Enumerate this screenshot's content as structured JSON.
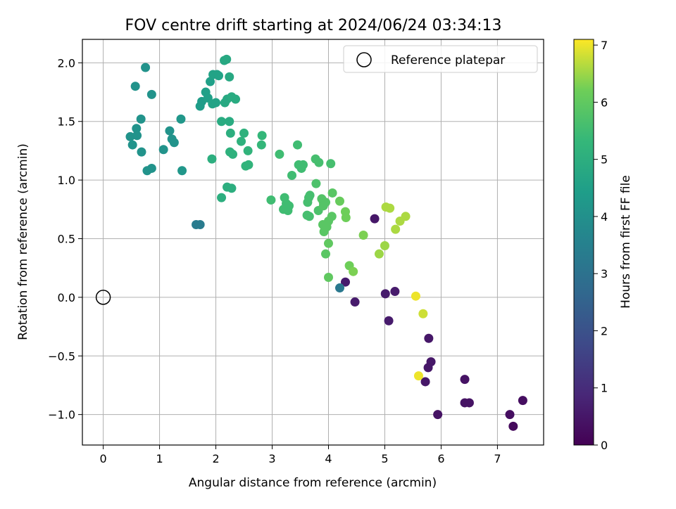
{
  "chart_data": {
    "type": "scatter",
    "title": "FOV centre drift starting at 2024/06/24 03:34:13",
    "xlabel": "Angular distance from reference (arcmin)",
    "ylabel": "Rotation from reference (arcmin)",
    "xlim": [
      -0.37,
      7.82
    ],
    "ylim": [
      -1.26,
      2.2
    ],
    "xticks": [
      0,
      1,
      2,
      3,
      4,
      5,
      6,
      7
    ],
    "yticks": [
      -1.0,
      -0.5,
      0.0,
      0.5,
      1.0,
      1.5,
      2.0
    ],
    "grid": true,
    "legend": {
      "position": "top-right",
      "entries": [
        "Reference platepar"
      ]
    },
    "reference_point": {
      "name": "Reference platepar",
      "x": 0,
      "y": 0
    },
    "colorbar": {
      "label": "Hours from first FF file",
      "colormap": "viridis",
      "range": [
        0,
        7.1
      ],
      "ticks": [
        0,
        1,
        2,
        3,
        4,
        5,
        6,
        7
      ]
    },
    "points": [
      [
        4.82,
        0.67,
        0.5
      ],
      [
        4.3,
        0.13,
        0.6
      ],
      [
        4.47,
        -0.04,
        0.6
      ],
      [
        5.01,
        0.03,
        0.6
      ],
      [
        5.18,
        0.05,
        0.6
      ],
      [
        5.07,
        -0.2,
        0.6
      ],
      [
        5.78,
        -0.35,
        0.5
      ],
      [
        5.82,
        -0.55,
        0.5
      ],
      [
        5.77,
        -0.6,
        0.5
      ],
      [
        5.72,
        -0.72,
        0.5
      ],
      [
        5.94,
        -1.0,
        0.4
      ],
      [
        6.42,
        -0.7,
        0.4
      ],
      [
        6.42,
        -0.9,
        0.4
      ],
      [
        6.5,
        -0.9,
        0.4
      ],
      [
        7.45,
        -0.88,
        0.3
      ],
      [
        7.22,
        -1.0,
        0.3
      ],
      [
        7.28,
        -1.1,
        0.2
      ],
      [
        4.2,
        0.08,
        3.2
      ],
      [
        1.65,
        0.62,
        3.3
      ],
      [
        1.72,
        0.62,
        3.3
      ],
      [
        0.75,
        1.96,
        4.1
      ],
      [
        0.57,
        1.8,
        4.1
      ],
      [
        0.86,
        1.73,
        4.1
      ],
      [
        0.67,
        1.52,
        4.1
      ],
      [
        0.48,
        1.37,
        4.1
      ],
      [
        0.59,
        1.44,
        4.1
      ],
      [
        0.6,
        1.38,
        4.1
      ],
      [
        0.52,
        1.3,
        4.1
      ],
      [
        0.68,
        1.24,
        4.1
      ],
      [
        0.78,
        1.08,
        4.1
      ],
      [
        0.86,
        1.1,
        4.1
      ],
      [
        1.07,
        1.26,
        4.1
      ],
      [
        1.18,
        1.42,
        4.1
      ],
      [
        1.22,
        1.35,
        4.1
      ],
      [
        1.26,
        1.32,
        4.1
      ],
      [
        1.38,
        1.52,
        4.2
      ],
      [
        1.4,
        1.08,
        4.2
      ],
      [
        1.72,
        1.63,
        4.4
      ],
      [
        1.75,
        1.67,
        4.4
      ],
      [
        1.82,
        1.75,
        4.5
      ],
      [
        1.86,
        1.7,
        4.5
      ],
      [
        1.9,
        1.84,
        4.5
      ],
      [
        1.95,
        1.9,
        4.6
      ],
      [
        2.02,
        1.9,
        4.6
      ],
      [
        2.05,
        1.89,
        4.6
      ],
      [
        1.94,
        1.65,
        4.6
      ],
      [
        2.0,
        1.66,
        4.6
      ],
      [
        2.15,
        2.02,
        4.8
      ],
      [
        2.19,
        2.03,
        4.8
      ],
      [
        2.2,
        1.69,
        4.8
      ],
      [
        2.16,
        1.66,
        4.8
      ],
      [
        2.24,
        1.88,
        4.8
      ],
      [
        2.28,
        1.71,
        4.9
      ],
      [
        2.35,
        1.69,
        4.9
      ],
      [
        2.1,
        1.5,
        4.9
      ],
      [
        2.24,
        1.5,
        4.9
      ],
      [
        2.26,
        1.4,
        5.0
      ],
      [
        1.93,
        1.18,
        5.0
      ],
      [
        2.2,
        0.94,
        5.0
      ],
      [
        2.28,
        0.93,
        5.0
      ],
      [
        2.1,
        0.85,
        5.0
      ],
      [
        2.25,
        1.24,
        5.1
      ],
      [
        2.3,
        1.22,
        5.1
      ],
      [
        2.45,
        1.33,
        5.1
      ],
      [
        2.5,
        1.4,
        5.1
      ],
      [
        2.53,
        1.12,
        5.2
      ],
      [
        2.58,
        1.13,
        5.2
      ],
      [
        2.57,
        1.25,
        5.2
      ],
      [
        2.82,
        1.38,
        5.3
      ],
      [
        2.81,
        1.3,
        5.3
      ],
      [
        3.13,
        1.22,
        5.5
      ],
      [
        3.45,
        1.3,
        5.5
      ],
      [
        3.35,
        1.04,
        5.5
      ],
      [
        3.47,
        1.13,
        5.5
      ],
      [
        3.55,
        1.13,
        5.5
      ],
      [
        3.52,
        1.1,
        5.5
      ],
      [
        3.77,
        1.18,
        5.6
      ],
      [
        3.83,
        1.15,
        5.6
      ],
      [
        4.04,
        1.14,
        5.6
      ],
      [
        2.98,
        0.83,
        5.5
      ],
      [
        3.22,
        0.85,
        5.5
      ],
      [
        3.25,
        0.8,
        5.5
      ],
      [
        3.2,
        0.75,
        5.5
      ],
      [
        3.27,
        0.76,
        5.5
      ],
      [
        3.3,
        0.78,
        5.5
      ],
      [
        3.28,
        0.74,
        5.5
      ],
      [
        3.63,
        0.81,
        5.6
      ],
      [
        3.65,
        0.85,
        5.6
      ],
      [
        3.67,
        0.87,
        5.6
      ],
      [
        3.62,
        0.7,
        5.6
      ],
      [
        3.66,
        0.69,
        5.6
      ],
      [
        3.78,
        0.97,
        5.7
      ],
      [
        3.82,
        0.74,
        5.7
      ],
      [
        3.88,
        0.84,
        5.8
      ],
      [
        3.91,
        0.81,
        5.8
      ],
      [
        3.95,
        0.81,
        5.8
      ],
      [
        3.91,
        0.78,
        5.8
      ],
      [
        4.07,
        0.89,
        5.9
      ],
      [
        4.06,
        0.69,
        5.9
      ],
      [
        4.0,
        0.65,
        5.9
      ],
      [
        3.9,
        0.62,
        5.9
      ],
      [
        3.92,
        0.56,
        5.9
      ],
      [
        3.97,
        0.6,
        5.9
      ],
      [
        3.95,
        0.37,
        5.9
      ],
      [
        4.0,
        0.46,
        6.0
      ],
      [
        4.0,
        0.17,
        6.0
      ],
      [
        4.2,
        0.82,
        6.1
      ],
      [
        4.3,
        0.73,
        6.2
      ],
      [
        4.31,
        0.68,
        6.2
      ],
      [
        4.37,
        0.27,
        6.2
      ],
      [
        4.44,
        0.22,
        6.3
      ],
      [
        4.62,
        0.53,
        6.3
      ],
      [
        4.9,
        0.37,
        6.5
      ],
      [
        5.0,
        0.44,
        6.5
      ],
      [
        5.02,
        0.77,
        6.6
      ],
      [
        5.09,
        0.76,
        6.6
      ],
      [
        5.19,
        0.58,
        6.6
      ],
      [
        5.27,
        0.65,
        6.6
      ],
      [
        5.37,
        0.69,
        6.6
      ],
      [
        5.68,
        -0.14,
        6.8
      ],
      [
        5.55,
        0.01,
        7.0
      ],
      [
        5.6,
        -0.67,
        7.0
      ]
    ]
  }
}
